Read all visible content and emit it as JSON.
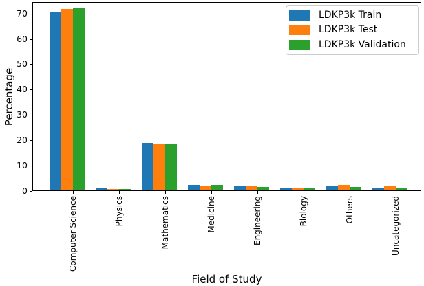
{
  "chart_data": {
    "type": "bar",
    "title": "",
    "xlabel": "Field of Study",
    "ylabel": "Percentage",
    "categories": [
      "Computer Science",
      "Physics",
      "Mathematics",
      "Medicine",
      "Engineering",
      "Biology",
      "Others",
      "Uncategorized"
    ],
    "series": [
      {
        "name": "LDKP3k Train",
        "color": "#1f77b4",
        "values": [
          70.6,
          1.1,
          19.0,
          2.4,
          1.8,
          1.1,
          2.2,
          1.4
        ]
      },
      {
        "name": "LDKP3k Test",
        "color": "#ff7f0e",
        "values": [
          71.7,
          0.7,
          18.4,
          1.9,
          2.2,
          1.1,
          2.4,
          2.0
        ]
      },
      {
        "name": "LDKP3k Validation",
        "color": "#2ca02c",
        "values": [
          72.0,
          0.8,
          18.7,
          2.5,
          1.7,
          1.0,
          1.6,
          1.1
        ]
      }
    ],
    "ylim": [
      0,
      74.5
    ],
    "yticks": [
      0,
      10,
      20,
      30,
      40,
      50,
      60,
      70
    ],
    "legend_position": "upper right",
    "grid": false,
    "axis_color": "#000000",
    "legend_border_color": "#cccccc"
  }
}
